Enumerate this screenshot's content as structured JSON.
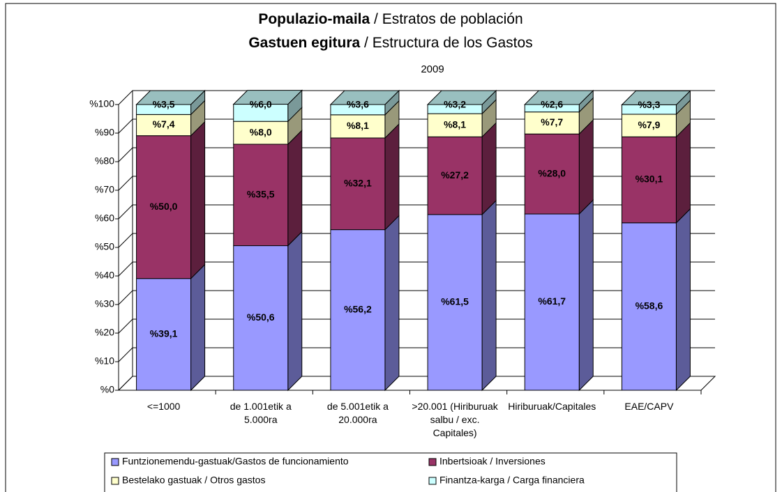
{
  "chart_data": {
    "type": "stacked-bar-3d",
    "title_lines": [
      [
        "Populazio-maila",
        "/ Estratos de población"
      ],
      [
        "Gastuen egitura",
        "/ Estructura de los Gastos"
      ]
    ],
    "subtitle": "2009",
    "categories": [
      "<=1000",
      "de 1.001etik a 5.000ra",
      "de 5.001etik a 20.000ra",
      ">20.001 (Hiriburuak salbu / exc. Capitales)",
      "Hiriburuak/Capitales",
      "EAE/CAPV"
    ],
    "series": [
      {
        "name": "Funtzionemendu-gastuak/Gastos de funcionamiento",
        "color": "#9999ff",
        "values": [
          39.1,
          50.6,
          56.2,
          61.5,
          61.7,
          58.6
        ],
        "value_labels": [
          "%39,1",
          "%50,6",
          "%56,2",
          "%61,5",
          "%61,7",
          "%58,6"
        ]
      },
      {
        "name": "Inbertsioak / Inversiones",
        "color": "#993366",
        "values": [
          50.0,
          35.5,
          32.1,
          27.2,
          28.0,
          30.1
        ],
        "value_labels": [
          "%50,0",
          "%35,5",
          "%32,1",
          "%27,2",
          "%28,0",
          "%30,1"
        ]
      },
      {
        "name": "Bestelako gastuak / Otros gastos",
        "color": "#ffffcc",
        "values": [
          7.4,
          8.0,
          8.1,
          8.1,
          7.7,
          7.9
        ],
        "value_labels": [
          "%7,4",
          "%8,0",
          "%8,1",
          "%8,1",
          "%7,7",
          "%7,9"
        ]
      },
      {
        "name": "Finantza-karga / Carga financiera",
        "color": "#ccffff",
        "values": [
          3.5,
          6.0,
          3.6,
          3.2,
          2.6,
          3.3
        ],
        "value_labels": [
          "%3,5",
          "%6,0",
          "%3,6",
          "%3,2",
          "%2,6",
          "%3,3"
        ]
      }
    ],
    "ylim": [
      0,
      100
    ],
    "yticks": [
      {
        "value": 0,
        "label": "%0"
      },
      {
        "value": 10,
        "label": "%10"
      },
      {
        "value": 20,
        "label": "%20"
      },
      {
        "value": 30,
        "label": "%30"
      },
      {
        "value": 40,
        "label": "%40"
      },
      {
        "value": 50,
        "label": "%50"
      },
      {
        "value": 60,
        "label": "%60"
      },
      {
        "value": 70,
        "label": "%70"
      },
      {
        "value": 80,
        "label": "%80"
      },
      {
        "value": 90,
        "label": "%90"
      },
      {
        "value": 100,
        "label": "%100"
      }
    ],
    "grid": true,
    "legend": "bottom"
  }
}
